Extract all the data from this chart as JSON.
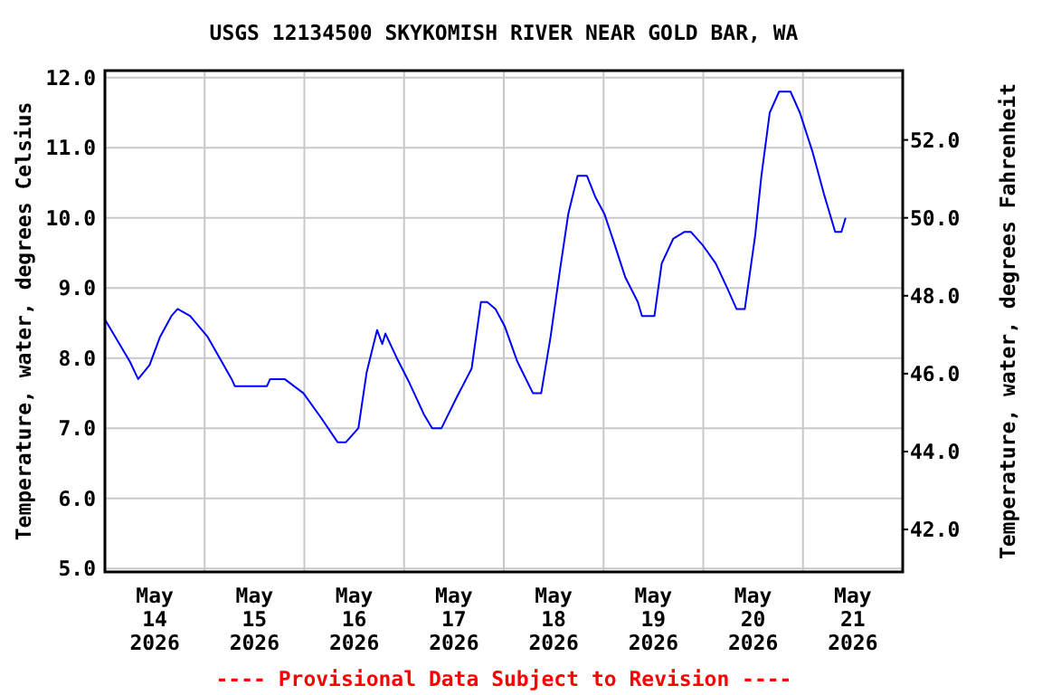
{
  "chart_data": {
    "type": "line",
    "title": "USGS 12134500 SKYKOMISH RIVER NEAR GOLD BAR, WA",
    "ylabel": "Temperature, water, degrees Celsius",
    "y2label": "Temperature, water, degrees Fahrenheit",
    "annotations": [
      "---- Provisional Data Subject to Revision ----"
    ],
    "xlim": [
      "2026-05-14T00:00",
      "2026-05-22T00:00"
    ],
    "xticks": [
      {
        "value": "2026-05-14T12:00",
        "label": "May\n14\n2026"
      },
      {
        "value": "2026-05-15T00:00",
        "label": null
      },
      {
        "value": "2026-05-15T12:00",
        "label": "May\n15\n2026"
      },
      {
        "value": "2026-05-16T00:00",
        "label": null
      },
      {
        "value": "2026-05-16T12:00",
        "label": "May\n16\n2026"
      },
      {
        "value": "2026-05-17T00:00",
        "label": null
      },
      {
        "value": "2026-05-17T12:00",
        "label": "May\n17\n2026"
      },
      {
        "value": "2026-05-18T00:00",
        "label": null
      },
      {
        "value": "2026-05-18T12:00",
        "label": "May\n18\n2026"
      },
      {
        "value": "2026-05-19T00:00",
        "label": null
      },
      {
        "value": "2026-05-19T12:00",
        "label": "May\n19\n2026"
      },
      {
        "value": "2026-05-20T00:00",
        "label": null
      },
      {
        "value": "2026-05-20T12:00",
        "label": "May\n20\n2026"
      },
      {
        "value": "2026-05-21T00:00",
        "label": null
      },
      {
        "value": "2026-05-21T12:00",
        "label": "May\n21\n2026"
      }
    ],
    "ylim": [
      4.95,
      12.1
    ],
    "yticks": [
      {
        "value": 5,
        "label": "5.0"
      },
      {
        "value": 6,
        "label": "6.0"
      },
      {
        "value": 7,
        "label": "7.0"
      },
      {
        "value": 8,
        "label": "8.0"
      },
      {
        "value": 9,
        "label": "9.0"
      },
      {
        "value": 10,
        "label": "10.0"
      },
      {
        "value": 11,
        "label": "11.0"
      },
      {
        "value": 12,
        "label": "12.0"
      }
    ],
    "y2lim": [
      40.91,
      53.78
    ],
    "y2ticks": [
      {
        "value": 42,
        "label": "42.0"
      },
      {
        "value": 44,
        "label": "44.0"
      },
      {
        "value": 46,
        "label": "46.0"
      },
      {
        "value": 48,
        "label": "48.0"
      },
      {
        "value": 50,
        "label": "50.0"
      },
      {
        "value": 52,
        "label": "52.0"
      }
    ],
    "grid": true,
    "marker": "none",
    "line_style": "solid",
    "series": [
      {
        "color": "#0000ff",
        "x": [
          "2026-05-14T00:00",
          "2026-05-14T06:00",
          "2026-05-14T08:00",
          "2026-05-14T10:45",
          "2026-05-14T13:15",
          "2026-05-14T16:00",
          "2026-05-14T17:30",
          "2026-05-14T20:30",
          "2026-05-15T00:45",
          "2026-05-15T06:30",
          "2026-05-15T07:15",
          "2026-05-15T15:00",
          "2026-05-15T15:45",
          "2026-05-15T19:15",
          "2026-05-15T23:45",
          "2026-05-16T04:00",
          "2026-05-16T08:00",
          "2026-05-16T10:00",
          "2026-05-16T13:00",
          "2026-05-16T15:00",
          "2026-05-16T17:30",
          "2026-05-16T18:45",
          "2026-05-16T19:30",
          "2026-05-16T22:15",
          "2026-05-17T01:15",
          "2026-05-17T04:45",
          "2026-05-17T06:45",
          "2026-05-17T09:00",
          "2026-05-17T12:45",
          "2026-05-17T16:15",
          "2026-05-17T18:30",
          "2026-05-17T20:00",
          "2026-05-17T22:00",
          "2026-05-18T00:15",
          "2026-05-18T03:15",
          "2026-05-18T07:00",
          "2026-05-18T09:00",
          "2026-05-18T11:15",
          "2026-05-18T13:30",
          "2026-05-18T15:30",
          "2026-05-18T17:45",
          "2026-05-18T20:00",
          "2026-05-18T22:00",
          "2026-05-19T00:15",
          "2026-05-19T02:30",
          "2026-05-19T05:15",
          "2026-05-19T08:15",
          "2026-05-19T09:15",
          "2026-05-19T12:15",
          "2026-05-19T14:00",
          "2026-05-19T16:45",
          "2026-05-19T19:30",
          "2026-05-19T21:00",
          "2026-05-20T00:00",
          "2026-05-20T03:00",
          "2026-05-20T05:45",
          "2026-05-20T08:00",
          "2026-05-20T10:00",
          "2026-05-20T12:30",
          "2026-05-20T14:00",
          "2026-05-20T16:00",
          "2026-05-20T18:15",
          "2026-05-20T21:00",
          "2026-05-20T23:15",
          "2026-05-21T02:15",
          "2026-05-21T05:00",
          "2026-05-21T07:15",
          "2026-05-21T07:45",
          "2026-05-21T09:15",
          "2026-05-21T10:15"
        ],
        "values": [
          8.55,
          7.95,
          7.7,
          7.9,
          8.3,
          8.6,
          8.7,
          8.6,
          8.3,
          7.7,
          7.6,
          7.6,
          7.7,
          7.7,
          7.5,
          7.15,
          6.8,
          6.8,
          7.0,
          7.8,
          8.4,
          8.2,
          8.35,
          8.0,
          7.65,
          7.2,
          7.0,
          7.0,
          7.45,
          7.85,
          8.8,
          8.8,
          8.7,
          8.45,
          7.95,
          7.5,
          7.5,
          8.3,
          9.25,
          10.05,
          10.6,
          10.6,
          10.3,
          10.05,
          9.65,
          9.15,
          8.8,
          8.6,
          8.6,
          9.35,
          9.7,
          9.8,
          9.8,
          9.6,
          9.35,
          9.0,
          8.7,
          8.7,
          9.75,
          10.6,
          11.5,
          11.8,
          11.8,
          11.5,
          10.95,
          10.35,
          9.9,
          9.8,
          9.8,
          10.0
        ]
      }
    ]
  }
}
